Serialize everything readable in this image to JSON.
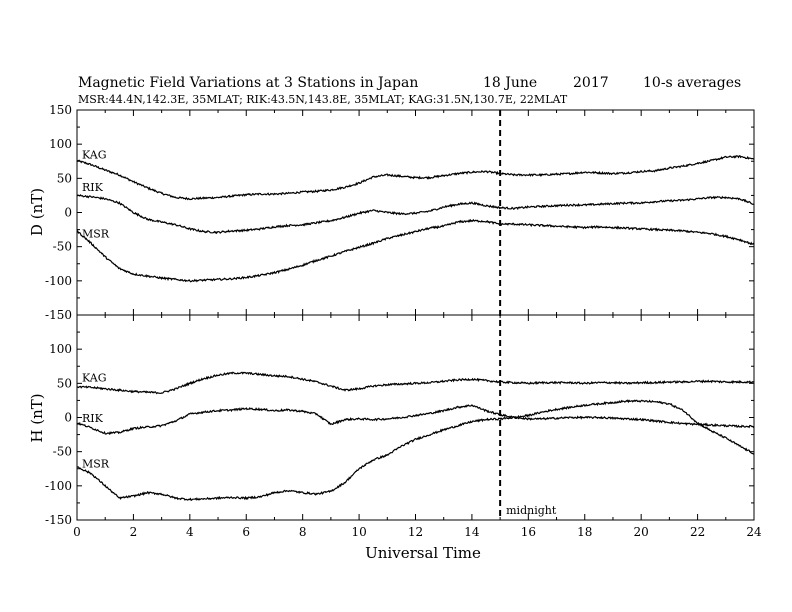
{
  "header": {
    "title": "Magnetic Field Variations at 3 Stations in Japan",
    "date": "18 June",
    "year": "2017",
    "averaging": "10-s averages",
    "stations_line": "MSR:44.4N,142.3E, 35MLAT;  RIK:43.5N,143.8E, 35MLAT;  KAG:31.5N,130.7E, 22MLAT"
  },
  "chart_data": [
    {
      "type": "line",
      "panel": "top",
      "ylabel": "D (nT)",
      "ylim": [
        -150,
        150
      ],
      "yticks": [
        -150,
        -100,
        -50,
        0,
        50,
        100,
        150
      ],
      "xlim": [
        0,
        24
      ],
      "series": [
        {
          "name": "KAG",
          "x": [
            0,
            0.5,
            1,
            1.5,
            2,
            2.5,
            3,
            3.5,
            4,
            4.5,
            5,
            5.5,
            6,
            6.5,
            7,
            7.5,
            8,
            8.5,
            9,
            9.5,
            10,
            10.5,
            11,
            11.5,
            12,
            12.5,
            13,
            13.5,
            14,
            14.5,
            15,
            15.5,
            16,
            16.5,
            17,
            17.5,
            18,
            18.5,
            19,
            19.5,
            20,
            20.5,
            21,
            21.5,
            22,
            22.5,
            23,
            23.5,
            24
          ],
          "y": [
            76,
            70,
            62,
            55,
            45,
            36,
            28,
            22,
            20,
            21,
            22,
            24,
            26,
            27,
            27,
            28,
            30,
            31,
            33,
            37,
            43,
            52,
            55,
            53,
            51,
            51,
            54,
            57,
            59,
            60,
            57,
            55,
            55,
            55,
            56,
            57,
            59,
            58,
            57,
            58,
            60,
            61,
            65,
            68,
            72,
            76,
            81,
            82,
            78
          ]
        },
        {
          "name": "RIK",
          "x": [
            0,
            0.5,
            1,
            1.5,
            2,
            2.5,
            3,
            3.5,
            4,
            4.5,
            5,
            5.5,
            6,
            6.5,
            7,
            7.5,
            8,
            8.5,
            9,
            9.5,
            10,
            10.5,
            11,
            11.5,
            12,
            12.5,
            13,
            13.5,
            14,
            14.5,
            15,
            15.5,
            16,
            16.5,
            17,
            17.5,
            18,
            18.5,
            19,
            19.5,
            20,
            20.5,
            21,
            21.5,
            22,
            22.5,
            23,
            23.5,
            24
          ],
          "y": [
            25,
            23,
            20,
            14,
            0,
            -10,
            -14,
            -18,
            -24,
            -28,
            -29,
            -27,
            -26,
            -24,
            -21,
            -19,
            -18,
            -15,
            -12,
            -7,
            -1,
            3,
            0,
            -2,
            -1,
            2,
            8,
            12,
            14,
            10,
            7,
            6,
            8,
            9,
            10,
            11,
            11,
            12,
            13,
            14,
            14,
            16,
            17,
            18,
            20,
            22,
            22,
            20,
            12
          ]
        },
        {
          "name": "MSR",
          "x": [
            0,
            0.5,
            1,
            1.5,
            2,
            2.5,
            3,
            3.5,
            4,
            4.5,
            5,
            5.5,
            6,
            6.5,
            7,
            7.5,
            8,
            8.5,
            9,
            9.5,
            10,
            10.5,
            11,
            11.5,
            12,
            12.5,
            13,
            13.5,
            14,
            14.5,
            15,
            15.5,
            16,
            16.5,
            17,
            17.5,
            18,
            18.5,
            19,
            19.5,
            20,
            20.5,
            21,
            21.5,
            22,
            22.5,
            23,
            23.5,
            24
          ],
          "y": [
            -27,
            -45,
            -65,
            -82,
            -90,
            -93,
            -96,
            -98,
            -100,
            -99,
            -98,
            -97,
            -95,
            -92,
            -88,
            -83,
            -77,
            -70,
            -64,
            -57,
            -51,
            -45,
            -38,
            -33,
            -28,
            -23,
            -20,
            -14,
            -12,
            -13,
            -17,
            -17,
            -18,
            -19,
            -20,
            -21,
            -22,
            -21,
            -22,
            -23,
            -24,
            -25,
            -26,
            -27,
            -29,
            -31,
            -35,
            -40,
            -47
          ]
        }
      ]
    },
    {
      "type": "line",
      "panel": "bottom",
      "ylabel": "H (nT)",
      "xlabel": "Universal Time",
      "ylim": [
        -150,
        150
      ],
      "yticks": [
        -150,
        -100,
        -50,
        0,
        50,
        100
      ],
      "xlim": [
        0,
        24
      ],
      "xticks": [
        0,
        2,
        4,
        6,
        8,
        10,
        12,
        14,
        16,
        18,
        20,
        22,
        24
      ],
      "series": [
        {
          "name": "KAG",
          "x": [
            0,
            0.5,
            1,
            1.5,
            2,
            2.5,
            3,
            3.5,
            4,
            4.5,
            5,
            5.5,
            6,
            6.5,
            7,
            7.5,
            8,
            8.5,
            9,
            9.5,
            10,
            10.5,
            11,
            11.5,
            12,
            12.5,
            13,
            13.5,
            14,
            14.5,
            15,
            15.5,
            16,
            16.5,
            17,
            17.5,
            18,
            18.5,
            19,
            19.5,
            20,
            20.5,
            21,
            21.5,
            22,
            22.5,
            23,
            23.5,
            24
          ],
          "y": [
            45,
            44,
            42,
            40,
            38,
            37,
            36,
            42,
            50,
            57,
            62,
            65,
            65,
            63,
            61,
            60,
            56,
            52,
            46,
            40,
            42,
            46,
            48,
            49,
            50,
            51,
            53,
            55,
            56,
            54,
            52,
            51,
            50,
            51,
            51,
            51,
            50,
            51,
            51,
            50,
            51,
            51,
            52,
            52,
            53,
            53,
            52,
            52,
            52
          ]
        },
        {
          "name": "RIK",
          "x": [
            0,
            0.5,
            1,
            1.5,
            2,
            2.5,
            3,
            3.5,
            4,
            4.5,
            5,
            5.5,
            6,
            6.5,
            7,
            7.5,
            8,
            8.5,
            9,
            9.5,
            10,
            10.5,
            11,
            11.5,
            12,
            12.5,
            13,
            13.5,
            14,
            14.5,
            15,
            15.5,
            16,
            16.5,
            17,
            17.5,
            18,
            18.5,
            19,
            19.5,
            20,
            20.5,
            21,
            21.5,
            22,
            22.5,
            23,
            23.5,
            24
          ],
          "y": [
            -8,
            -15,
            -23,
            -22,
            -16,
            -14,
            -12,
            -5,
            5,
            8,
            10,
            11,
            13,
            12,
            10,
            11,
            9,
            5,
            -10,
            -3,
            -2,
            -3,
            -2,
            0,
            3,
            6,
            10,
            15,
            18,
            10,
            4,
            0,
            -2,
            -2,
            -1,
            0,
            0,
            0,
            -1,
            -2,
            -3,
            -5,
            -7,
            -9,
            -10,
            -11,
            -12,
            -13,
            -13
          ]
        },
        {
          "name": "MSR",
          "x": [
            0,
            0.5,
            1,
            1.5,
            2,
            2.5,
            3,
            3.5,
            4,
            4.5,
            5,
            5.5,
            6,
            6.5,
            7,
            7.5,
            8,
            8.5,
            9,
            9.5,
            10,
            10.5,
            11,
            11.5,
            12,
            12.5,
            13,
            13.5,
            14,
            14.5,
            15,
            15.5,
            16,
            16.5,
            17,
            17.5,
            18,
            18.5,
            19,
            19.5,
            20,
            20.5,
            21,
            21.5,
            22,
            22.5,
            23,
            23.5,
            24
          ],
          "y": [
            -72,
            -82,
            -100,
            -118,
            -115,
            -110,
            -112,
            -118,
            -120,
            -119,
            -118,
            -117,
            -118,
            -116,
            -110,
            -107,
            -110,
            -112,
            -108,
            -95,
            -75,
            -62,
            -55,
            -42,
            -32,
            -25,
            -18,
            -12,
            -6,
            -3,
            -2,
            0,
            3,
            8,
            12,
            15,
            18,
            20,
            22,
            24,
            24,
            23,
            20,
            10,
            -8,
            -20,
            -30,
            -42,
            -53
          ]
        }
      ]
    }
  ],
  "annotations": {
    "midnight_label": "midnight",
    "midnight_ut": 15
  }
}
